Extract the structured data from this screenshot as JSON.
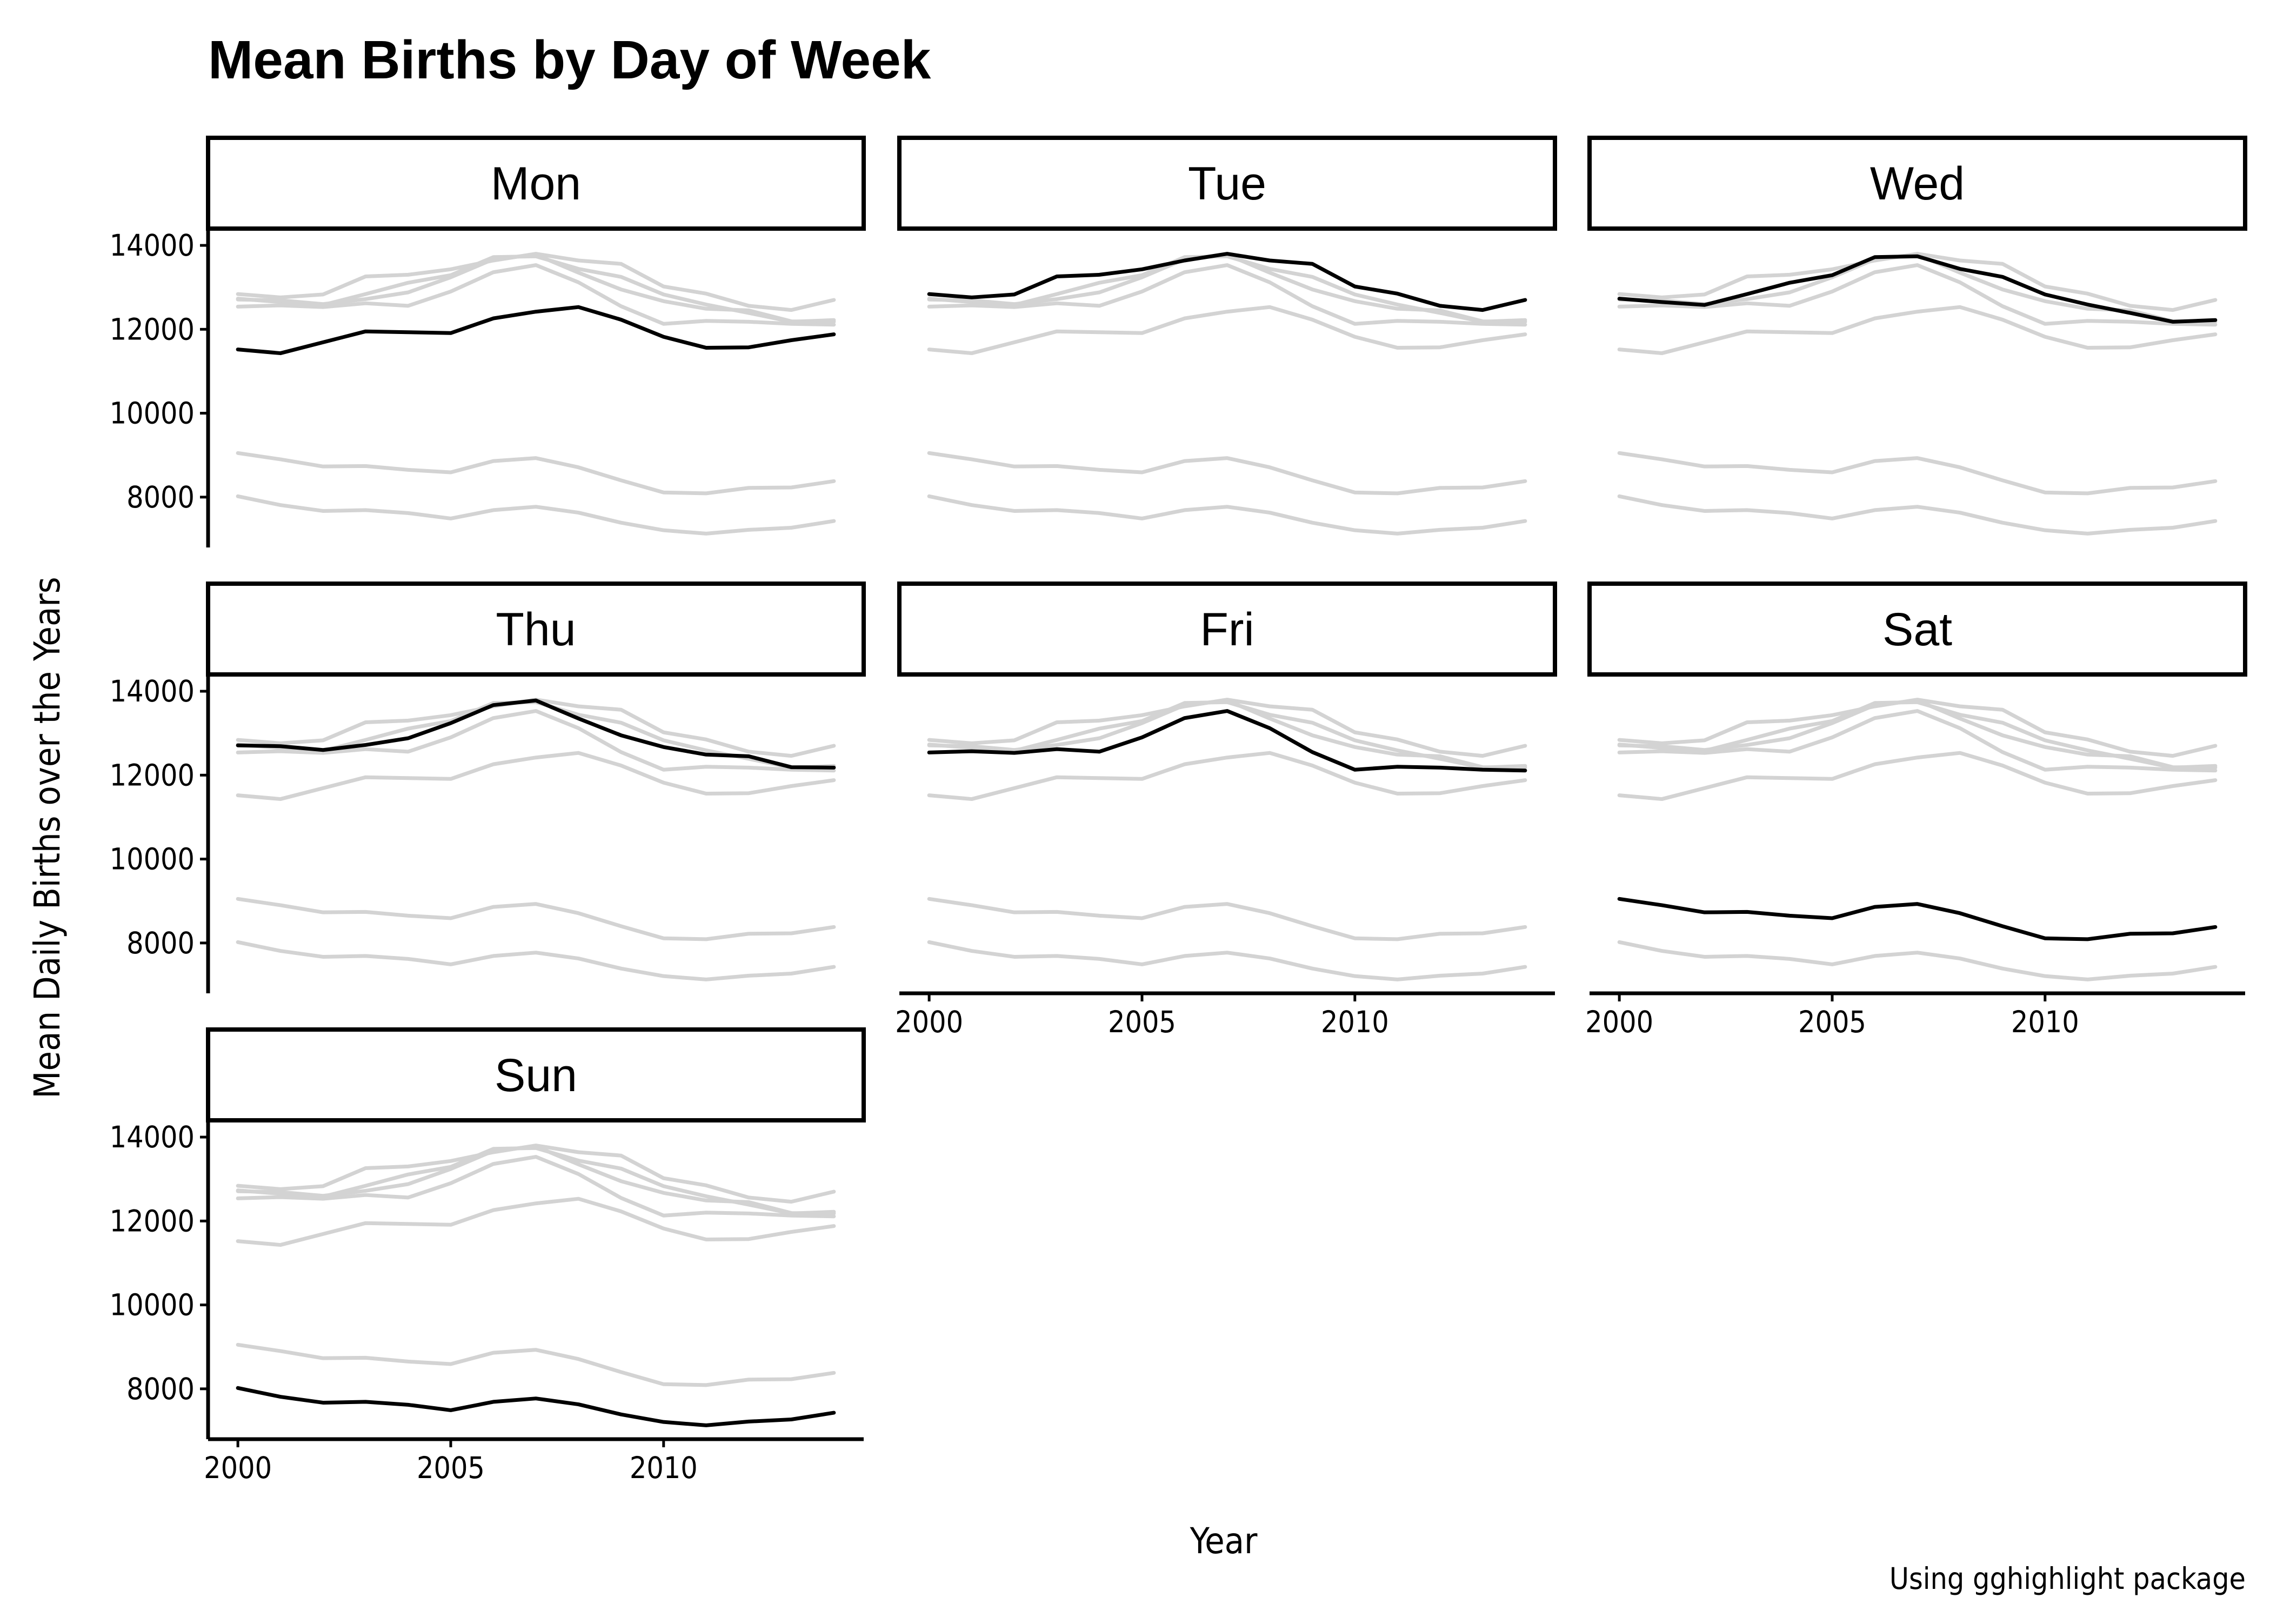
{
  "chart_data": {
    "type": "line",
    "title": "Mean Births by Day of Week",
    "xlabel": "Year",
    "ylabel": "Mean Daily Births over the Years",
    "caption": "Using gghighlight package",
    "facet_order": [
      "Mon",
      "Tue",
      "Wed",
      "Thu",
      "Fri",
      "Sat",
      "Sun"
    ],
    "x": [
      2000,
      2001,
      2002,
      2003,
      2004,
      2005,
      2006,
      2007,
      2008,
      2009,
      2010,
      2011,
      2012,
      2013,
      2014
    ],
    "xlim": [
      1999.3,
      2014.7
    ],
    "ylim": [
      6800,
      14400
    ],
    "x_ticks": [
      2000,
      2005,
      2010
    ],
    "y_ticks": [
      8000,
      10000,
      12000,
      14000
    ],
    "highlight_color": "#000000",
    "background_color": "#d3d3d3",
    "grid": false,
    "legend": "none",
    "series": [
      {
        "name": "Mon",
        "values": [
          11520,
          11430,
          11690,
          11950,
          11930,
          11910,
          12260,
          12420,
          12530,
          12230,
          11820,
          11560,
          11570,
          11740,
          11880
        ]
      },
      {
        "name": "Tue",
        "values": [
          12840,
          12760,
          12830,
          13260,
          13300,
          13430,
          13640,
          13800,
          13640,
          13560,
          13020,
          12850,
          12560,
          12460,
          12700
        ]
      },
      {
        "name": "Wed",
        "values": [
          12730,
          12650,
          12580,
          12840,
          13110,
          13290,
          13720,
          13740,
          13440,
          13250,
          12830,
          12590,
          12390,
          12180,
          12220
        ]
      },
      {
        "name": "Thu",
        "values": [
          12710,
          12690,
          12600,
          12720,
          12880,
          13240,
          13670,
          13780,
          13350,
          12950,
          12670,
          12490,
          12450,
          12190,
          12180
        ]
      },
      {
        "name": "Fri",
        "values": [
          12540,
          12570,
          12530,
          12620,
          12560,
          12900,
          13360,
          13530,
          13120,
          12550,
          12130,
          12200,
          12180,
          12130,
          12110
        ]
      },
      {
        "name": "Sat",
        "values": [
          9050,
          8900,
          8730,
          8740,
          8650,
          8590,
          8860,
          8930,
          8710,
          8400,
          8110,
          8090,
          8220,
          8230,
          8380
        ]
      },
      {
        "name": "Sun",
        "values": [
          8020,
          7810,
          7670,
          7690,
          7620,
          7490,
          7690,
          7770,
          7630,
          7390,
          7210,
          7130,
          7220,
          7270,
          7430
        ]
      }
    ]
  }
}
